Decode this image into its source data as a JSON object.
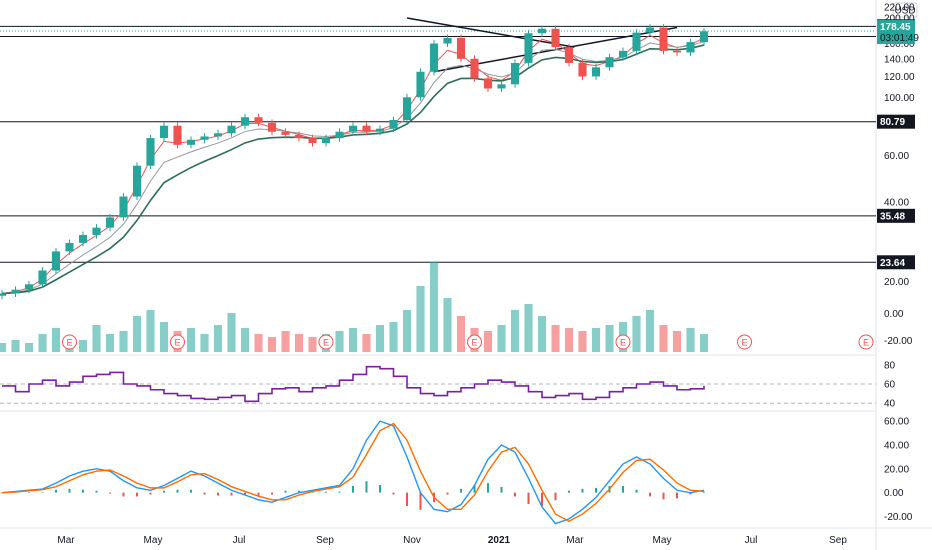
{
  "chart_data": {
    "type": "candlestick",
    "currency": "USD",
    "x_labels": [
      "Mar",
      "May",
      "Jul",
      "Sep",
      "Nov",
      "2021",
      "Mar",
      "May",
      "Jul",
      "Sep"
    ],
    "price_panel": {
      "y_ticks": [
        20,
        40,
        60,
        80,
        100,
        120,
        140,
        160,
        200,
        220
      ],
      "scale": "log",
      "ylim": [
        17,
        230
      ],
      "horizontal_levels": [
        185.96,
        170.07,
        80.79,
        35.48,
        23.64
      ],
      "last_price": 178.45,
      "countdown": "03:01:49",
      "colors": {
        "up": "#26a69a",
        "down": "#ef5350",
        "ema_fast": "#ef5350",
        "ema_mid": "#9598a1",
        "ema_slow": "#2e6e57",
        "last": "#26a69a",
        "level": "#131722"
      },
      "closes": [
        18,
        18.6,
        19.5,
        22,
        26,
        28,
        30,
        32,
        35,
        42,
        55,
        70,
        78,
        66,
        69,
        71,
        73,
        78,
        84,
        80,
        74,
        72,
        70,
        67,
        70,
        74,
        78,
        74,
        76,
        82,
        100,
        125,
        160,
        168,
        140,
        118,
        108,
        112,
        135,
        175,
        182,
        155,
        135,
        120,
        130,
        142,
        150,
        176,
        184,
        150,
        148,
        162,
        178
      ],
      "channel": {
        "upper": [
          [
            150,
            200
          ],
          [
            212,
            155
          ]
        ],
        "lower": [
          [
            160,
            125
          ],
          [
            250,
            184
          ]
        ]
      }
    },
    "volume_panel": {
      "y_ticks": [
        0.0,
        -20.0
      ],
      "earnings_markers": [
        "E",
        "E",
        "E",
        "E",
        "E",
        "E",
        "E"
      ],
      "volumes": [
        3,
        4,
        3,
        6,
        8,
        5,
        4,
        9,
        6,
        7,
        12,
        14,
        10,
        7,
        8,
        6,
        9,
        13,
        8,
        6,
        5,
        7,
        6,
        5,
        6,
        7,
        8,
        6,
        9,
        10,
        14,
        22,
        30,
        18,
        12,
        8,
        7,
        9,
        14,
        16,
        12,
        9,
        8,
        7,
        8,
        9,
        10,
        12,
        14,
        9,
        7,
        8,
        6
      ]
    },
    "rsi_panel": {
      "y_ticks": [
        80,
        60,
        40
      ],
      "ylim": [
        35,
        85
      ],
      "bands": [
        60,
        40
      ],
      "values": [
        58,
        52,
        60,
        64,
        58,
        62,
        68,
        70,
        72,
        60,
        58,
        54,
        50,
        48,
        45,
        44,
        46,
        48,
        42,
        50,
        55,
        56,
        52,
        56,
        58,
        64,
        70,
        78,
        76,
        68,
        56,
        50,
        48,
        52,
        56,
        60,
        64,
        62,
        58,
        52,
        46,
        48,
        50,
        44,
        46,
        52,
        56,
        60,
        62,
        58,
        54,
        55,
        58
      ]
    },
    "macd_panel": {
      "y_ticks": [
        60.0,
        40.0,
        20.0,
        0.0,
        -20.0
      ],
      "ylim": [
        -28,
        66
      ],
      "colors": {
        "macd": "#2196f3",
        "signal": "#ff6d00",
        "hist_up": "#26a69a",
        "hist_down": "#ef5350"
      },
      "macd": [
        0,
        1,
        2,
        3,
        8,
        14,
        18,
        20,
        18,
        10,
        4,
        2,
        6,
        12,
        18,
        14,
        8,
        2,
        -2,
        -6,
        -8,
        -4,
        0,
        2,
        4,
        6,
        20,
        44,
        60,
        56,
        30,
        0,
        -14,
        -16,
        -10,
        6,
        28,
        40,
        34,
        12,
        -12,
        -26,
        -22,
        -14,
        -4,
        10,
        24,
        30,
        24,
        12,
        2,
        0,
        2
      ],
      "signal": [
        0,
        0.5,
        1.5,
        2.5,
        5,
        10,
        15,
        18,
        19,
        14,
        8,
        4,
        4,
        9,
        15,
        16,
        11,
        5,
        1,
        -3,
        -6,
        -6,
        -2,
        1,
        3,
        5,
        13,
        32,
        52,
        58,
        44,
        18,
        -4,
        -14,
        -14,
        -2,
        18,
        34,
        38,
        24,
        2,
        -18,
        -24,
        -18,
        -9,
        3,
        17,
        27,
        28,
        19,
        8,
        2,
        1
      ]
    }
  }
}
